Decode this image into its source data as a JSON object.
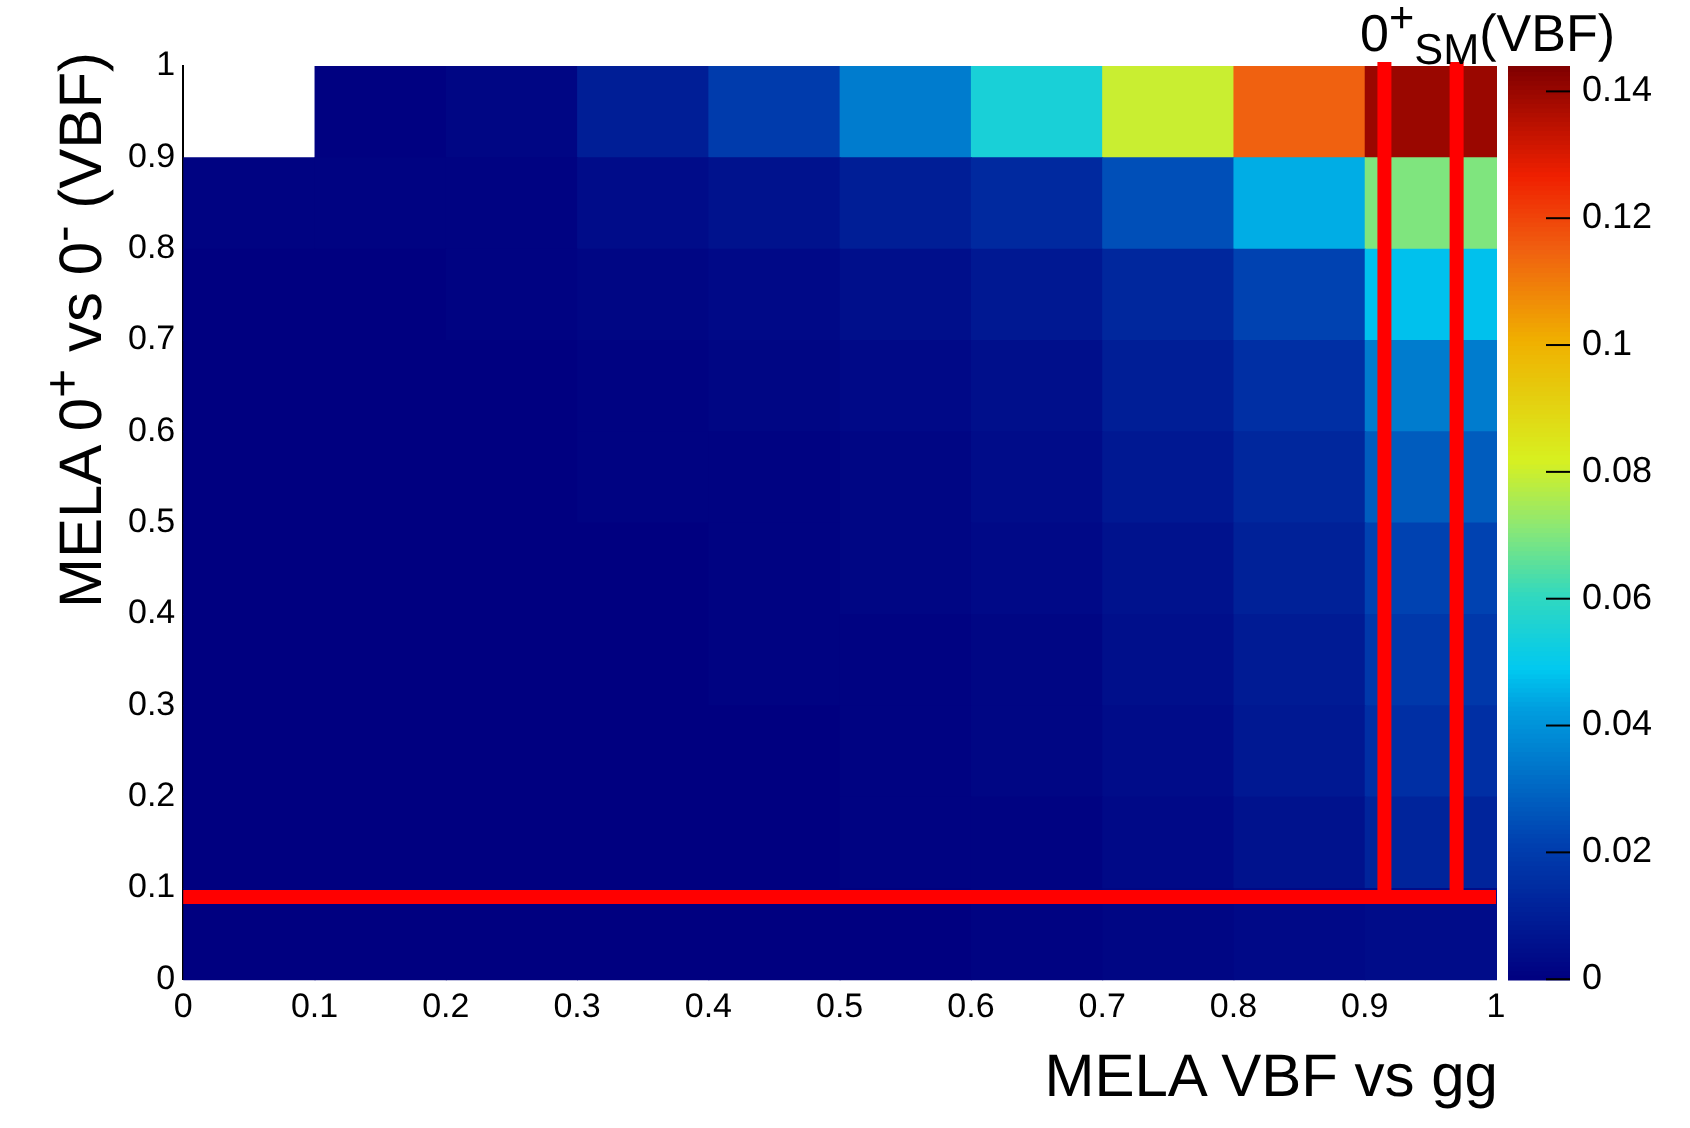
{
  "chart_data": {
    "type": "heatmap",
    "title": "0$^{+}$$_{SM}$(VBF)",
    "xlabel": "MELA VBF vs gg",
    "ylabel": "MELA 0$^{+}$ vs 0$^{-}$ (VBF)",
    "xlim": [
      0,
      1
    ],
    "xticks": [
      0,
      0.1,
      0.2,
      0.3,
      0.4,
      0.5,
      0.6,
      0.7,
      0.8,
      0.9,
      1
    ],
    "ylim": [
      0,
      1
    ],
    "yticks": [
      0,
      0.1,
      0.2,
      0.3,
      0.4,
      0.5,
      0.6,
      0.7,
      0.8,
      0.9,
      1
    ],
    "cells": [
      [
        null,
        0.0005,
        0.002,
        0.01,
        0.02,
        0.035,
        0.055,
        0.08,
        0.115,
        0.14
      ],
      [
        0.001,
        0.001,
        0.001,
        0.004,
        0.006,
        0.01,
        0.014,
        0.025,
        0.045,
        0.07
      ],
      [
        0,
        0,
        0.001,
        0.002,
        0.003,
        0.005,
        0.008,
        0.013,
        0.022,
        0.048
      ],
      [
        0,
        0,
        0,
        0.001,
        0.002,
        0.003,
        0.005,
        0.01,
        0.016,
        0.035
      ],
      [
        0,
        0,
        0,
        0.001,
        0.001,
        0.002,
        0.004,
        0.008,
        0.013,
        0.028
      ],
      [
        0,
        0,
        0,
        0,
        0.001,
        0.002,
        0.003,
        0.006,
        0.011,
        0.022
      ],
      [
        0,
        0,
        0,
        0,
        0.001,
        0.001,
        0.002,
        0.005,
        0.009,
        0.019
      ],
      [
        0,
        0,
        0,
        0,
        0,
        0.001,
        0.002,
        0.004,
        0.008,
        0.016
      ],
      [
        0,
        0,
        0,
        0,
        0,
        0.001,
        0.001,
        0.003,
        0.006,
        0.012
      ],
      [
        0,
        0,
        0,
        0,
        0,
        0,
        0.001,
        0.002,
        0.003,
        0.004
      ]
    ],
    "clim": [
      0,
      0.144
    ],
    "cticks": [
      0,
      0.02,
      0.04,
      0.06,
      0.08,
      0.1,
      0.12,
      0.14
    ],
    "ref_lines": [
      {
        "axis": "y",
        "value": 0.09,
        "color": "#ff0000"
      },
      {
        "axis": "x",
        "value": 0.915,
        "color": "#ff0000"
      },
      {
        "axis": "x",
        "value": 0.97,
        "color": "#ff0000"
      }
    ],
    "grid": false,
    "legend": false
  }
}
